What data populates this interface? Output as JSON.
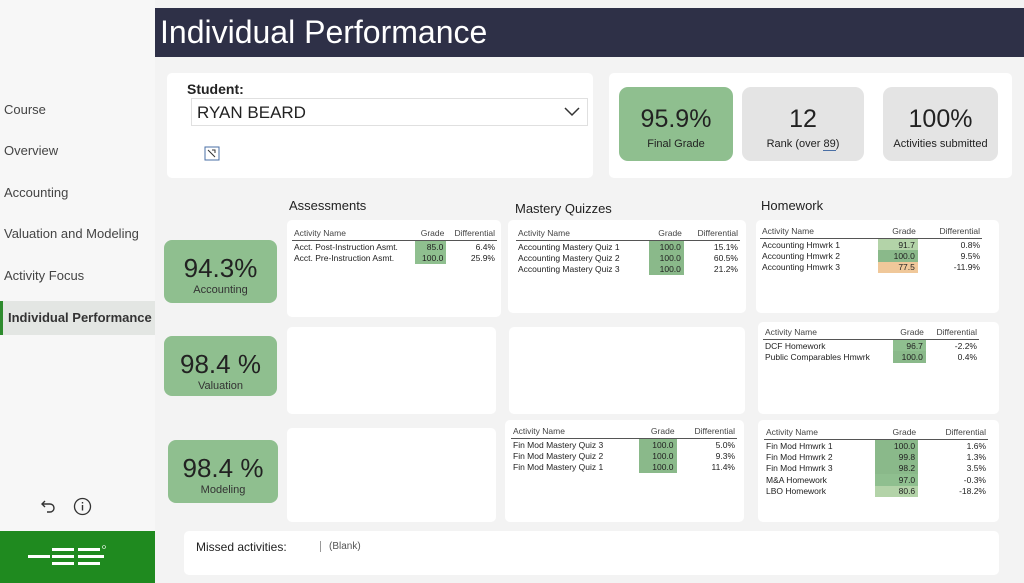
{
  "nav": {
    "items": [
      {
        "label": "Course",
        "active": false
      },
      {
        "label": "Overview",
        "active": false
      },
      {
        "label": "Accounting",
        "active": false
      },
      {
        "label": "Valuation and Modeling",
        "active": false
      },
      {
        "label": "Activity Focus",
        "active": false
      },
      {
        "label": "Individual Performance",
        "active": true
      }
    ],
    "icons": [
      "undo-icon",
      "info-icon"
    ]
  },
  "header": {
    "title": "Individual Performance"
  },
  "student": {
    "label": "Student:",
    "selected": "RYAN BEARD"
  },
  "kpis": {
    "final_grade": {
      "value": "95.9%",
      "label": "Final Grade"
    },
    "rank": {
      "value": "12",
      "label_prefix": "Rank (over ",
      "label_number": "89",
      "label_suffix": ")"
    },
    "activities": {
      "value": "100%",
      "label": "Activities submitted"
    }
  },
  "scores": {
    "accounting": {
      "value": "94.3%",
      "label": "Accounting"
    },
    "valuation": {
      "value": "98.4 %",
      "label": "Valuation"
    },
    "modeling": {
      "value": "98.4 %",
      "label": "Modeling"
    }
  },
  "sections": {
    "assessments": "Assessments",
    "mastery": "Mastery Quizzes",
    "homework": "Homework"
  },
  "columns": {
    "name": "Activity Name",
    "grade": "Grade",
    "diff": "Differential"
  },
  "tables": {
    "assess_acct": [
      {
        "name": "Acct. Post-Instruction Asmt.",
        "grade": "85.0",
        "diff": "6.4%"
      },
      {
        "name": "Acct. Pre-Instruction Asmt.",
        "grade": "100.0",
        "diff": "25.9%"
      }
    ],
    "mastery_acct": [
      {
        "name": "Accounting Mastery Quiz 1",
        "grade": "100.0",
        "diff": "15.1%"
      },
      {
        "name": "Accounting Mastery Quiz 2",
        "grade": "100.0",
        "diff": "60.5%"
      },
      {
        "name": "Accounting Mastery Quiz 3",
        "grade": "100.0",
        "diff": "21.2%"
      }
    ],
    "hw_acct": [
      {
        "name": "Accounting Hmwrk 1",
        "grade": "91.7",
        "diff": "0.8%"
      },
      {
        "name": "Accounting Hmwrk 2",
        "grade": "100.0",
        "diff": "9.5%"
      },
      {
        "name": "Accounting Hmwrk 3",
        "grade": "77.5",
        "diff": "-11.9%"
      }
    ],
    "hw_val": [
      {
        "name": "DCF Homework",
        "grade": "96.7",
        "diff": "-2.2%"
      },
      {
        "name": "Public Comparables Hmwrk",
        "grade": "100.0",
        "diff": "0.4%"
      }
    ],
    "mastery_mod": [
      {
        "name": "Fin Mod Mastery Quiz 3",
        "grade": "100.0",
        "diff": "5.0%"
      },
      {
        "name": "Fin Mod Mastery Quiz 2",
        "grade": "100.0",
        "diff": "9.3%"
      },
      {
        "name": "Fin Mod Mastery Quiz 1",
        "grade": "100.0",
        "diff": "11.4%"
      }
    ],
    "hw_mod": [
      {
        "name": "Fin Mod Hmwrk 1",
        "grade": "100.0",
        "diff": "1.6%"
      },
      {
        "name": "Fin Mod Hmwrk 2",
        "grade": "99.8",
        "diff": "1.3%"
      },
      {
        "name": "Fin Mod Hmwrk 3",
        "grade": "98.2",
        "diff": "3.5%"
      },
      {
        "name": "M&A Homework",
        "grade": "97.0",
        "diff": "-0.3%"
      },
      {
        "name": "LBO Homework",
        "grade": "80.6",
        "diff": "-18.2%"
      }
    ]
  },
  "missed": {
    "label": "Missed activities:",
    "value": "(Blank)"
  },
  "colors": {
    "header": "#2e3047",
    "accent_green": "#1f8a1f",
    "kpi_green": "#8fbf8f"
  }
}
